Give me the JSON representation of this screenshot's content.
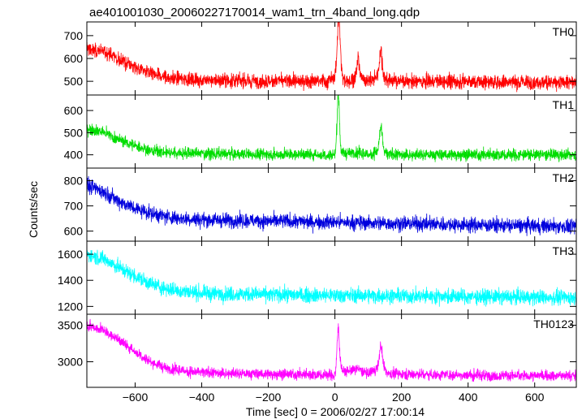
{
  "chart_data": {
    "type": "line",
    "title": "ae401001030_20060227170014_wam1_trn_4band_long.qdp",
    "xlabel": "Time [sec] 0 = 2006/02/27 17:00:14",
    "ylabel": "Counts/sec",
    "xlim": [
      -745,
      725
    ],
    "x_ticks": [
      -600,
      -400,
      -200,
      0,
      200,
      400,
      600
    ],
    "grid": false,
    "panels": [
      {
        "name": "TH0",
        "color": "#ff0000",
        "ylim": [
          440,
          760
        ],
        "y_ticks": [
          500,
          600,
          700
        ],
        "noise": 30,
        "envelope": [
          [
            -745,
            640
          ],
          [
            -700,
            635
          ],
          [
            -650,
            600
          ],
          [
            -600,
            560
          ],
          [
            -550,
            530
          ],
          [
            -500,
            515
          ],
          [
            -400,
            505
          ],
          [
            -200,
            500
          ],
          [
            -20,
            500
          ],
          [
            0,
            520
          ],
          [
            10,
            560
          ],
          [
            20,
            510
          ],
          [
            40,
            500
          ],
          [
            70,
            520
          ],
          [
            100,
            500
          ],
          [
            130,
            520
          ],
          [
            150,
            505
          ],
          [
            200,
            500
          ],
          [
            400,
            498
          ],
          [
            600,
            495
          ],
          [
            725,
            495
          ]
        ],
        "spikes": [
          [
            12,
            240,
            6
          ],
          [
            70,
            80,
            5
          ],
          [
            138,
            120,
            6
          ]
        ]
      },
      {
        "name": "TH1",
        "color": "#00dd00",
        "ylim": [
          340,
          670
        ],
        "y_ticks": [
          400,
          500,
          600
        ],
        "noise": 25,
        "envelope": [
          [
            -745,
            520
          ],
          [
            -700,
            505
          ],
          [
            -650,
            470
          ],
          [
            -600,
            440
          ],
          [
            -550,
            420
          ],
          [
            -500,
            410
          ],
          [
            -300,
            403
          ],
          [
            0,
            400
          ],
          [
            10,
            430
          ],
          [
            20,
            405
          ],
          [
            60,
            410
          ],
          [
            100,
            400
          ],
          [
            138,
            420
          ],
          [
            160,
            400
          ],
          [
            400,
            400
          ],
          [
            725,
            400
          ]
        ],
        "spikes": [
          [
            10,
            250,
            5
          ],
          [
            138,
            100,
            6
          ]
        ]
      },
      {
        "name": "TH2",
        "color": "#0000dd",
        "ylim": [
          560,
          850
        ],
        "y_ticks": [
          600,
          700,
          800
        ],
        "noise": 28,
        "envelope": [
          [
            -745,
            780
          ],
          [
            -700,
            760
          ],
          [
            -650,
            720
          ],
          [
            -600,
            690
          ],
          [
            -550,
            670
          ],
          [
            -500,
            655
          ],
          [
            -400,
            645
          ],
          [
            -200,
            640
          ],
          [
            0,
            635
          ],
          [
            200,
            630
          ],
          [
            400,
            625
          ],
          [
            600,
            620
          ],
          [
            725,
            618
          ]
        ],
        "spikes": []
      },
      {
        "name": "TH3",
        "color": "#00ffff",
        "ylim": [
          1140,
          1700
        ],
        "y_ticks": [
          1200,
          1400,
          1600
        ],
        "noise": 55,
        "envelope": [
          [
            -745,
            1600
          ],
          [
            -700,
            1570
          ],
          [
            -650,
            1500
          ],
          [
            -600,
            1430
          ],
          [
            -550,
            1370
          ],
          [
            -500,
            1330
          ],
          [
            -400,
            1300
          ],
          [
            -200,
            1290
          ],
          [
            0,
            1285
          ],
          [
            200,
            1280
          ],
          [
            400,
            1275
          ],
          [
            600,
            1270
          ],
          [
            725,
            1268
          ]
        ],
        "spikes": []
      },
      {
        "name": "TH0123",
        "color": "#ff00ff",
        "ylim": [
          2650,
          3650
        ],
        "y_ticks": [
          3000,
          3500
        ],
        "noise": 70,
        "envelope": [
          [
            -745,
            3500
          ],
          [
            -700,
            3440
          ],
          [
            -650,
            3300
          ],
          [
            -600,
            3140
          ],
          [
            -550,
            2990
          ],
          [
            -500,
            2900
          ],
          [
            -400,
            2850
          ],
          [
            -200,
            2830
          ],
          [
            0,
            2820
          ],
          [
            10,
            3000
          ],
          [
            25,
            2860
          ],
          [
            70,
            2900
          ],
          [
            100,
            2830
          ],
          [
            138,
            2950
          ],
          [
            160,
            2840
          ],
          [
            400,
            2815
          ],
          [
            600,
            2810
          ],
          [
            725,
            2810
          ]
        ],
        "spikes": [
          [
            10,
            450,
            5
          ],
          [
            138,
            280,
            6
          ]
        ]
      }
    ]
  }
}
